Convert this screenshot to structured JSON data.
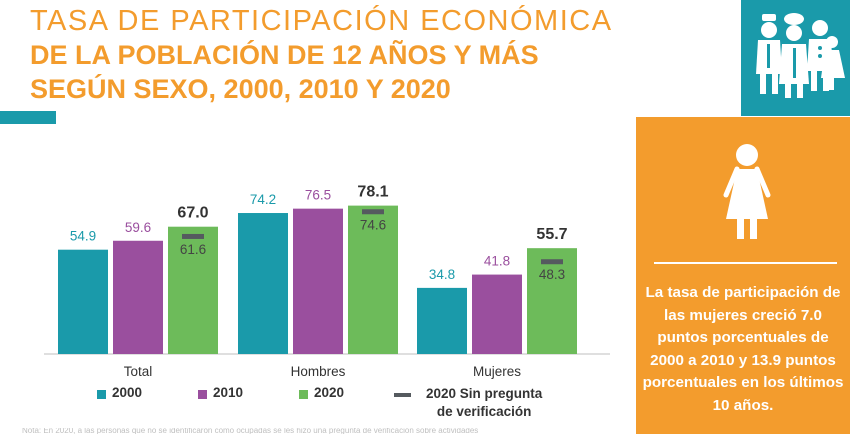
{
  "header": {
    "title_line1": "TASA DE PARTICIPACIÓN ECONÓMICA",
    "title_line2": "DE LA POBLACIÓN DE 12 AÑOS Y MÁS",
    "title_line3": "SEGÚN SEXO, 2000, 2010 Y 2020"
  },
  "colors": {
    "orange": "#f39c2d",
    "teal": "#1a9aaa",
    "series_2000": "#1a9aaa",
    "series_2010": "#9a4f9e",
    "series_2020": "#6dbb5a",
    "marker": "#555a5f"
  },
  "icons": {
    "workers": "workers-group-icon",
    "woman": "woman-icon"
  },
  "side_panel": {
    "text": "La tasa de participación de las mujeres creció 7.0 puntos porcentuales de 2000 a 2010 y 13.9 puntos porcentuales en los últimos 10 años."
  },
  "chart_data": {
    "type": "bar",
    "title": "TASA DE PARTICIPACIÓN ECONÓMICA DE LA POBLACIÓN DE 12 AÑOS Y MÁS SEGÚN SEXO, 2000, 2010 Y 2020",
    "categories": [
      "Total",
      "Hombres",
      "Mujeres"
    ],
    "series": [
      {
        "name": "2000",
        "values": [
          54.9,
          74.2,
          34.8
        ],
        "labels": [
          "54.9",
          "74.2",
          "34.8"
        ]
      },
      {
        "name": "2010",
        "values": [
          59.6,
          76.5,
          41.8
        ],
        "labels": [
          "59.6",
          "76.5",
          "41.8"
        ]
      },
      {
        "name": "2020",
        "values": [
          67.0,
          78.1,
          55.7
        ],
        "labels": [
          "67.0",
          "78.1",
          "55.7"
        ]
      }
    ],
    "markers": {
      "name": "2020 Sin pregunta de verificación",
      "values": [
        61.6,
        74.6,
        48.3
      ],
      "labels": [
        "61.6",
        "74.6",
        "48.3"
      ]
    },
    "ylim": [
      0,
      100
    ],
    "xlabel": "",
    "ylabel": "",
    "legend_position": "bottom",
    "legend": {
      "s2000": "2000",
      "s2010": "2010",
      "s2020": "2020",
      "marker_line1": "2020 Sin pregunta",
      "marker_line2": "de verificación"
    }
  },
  "note": "Nota: En 2020, a las personas que no se identificaron como ocupadas se les hizo una pregunta de verificación sobre actividades"
}
